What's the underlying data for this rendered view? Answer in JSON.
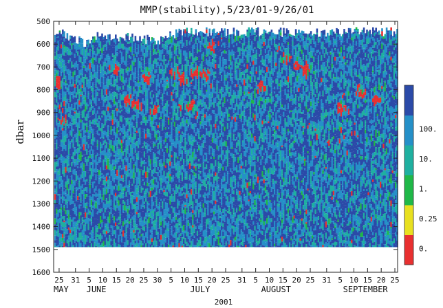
{
  "chart_data": {
    "type": "heatmap",
    "title": "MMP(stability),5/23/01-9/26/01",
    "ylabel": "dbar",
    "xlabel": "2001",
    "y_reversed": true,
    "ylim": [
      500,
      1600
    ],
    "yticks": [
      500,
      600,
      700,
      800,
      900,
      1000,
      1100,
      1200,
      1300,
      1400,
      1500,
      1600
    ],
    "xlim": [
      "2001-05-23",
      "2001-09-26"
    ],
    "day_ticks": [
      {
        "date": "2001-05-25",
        "label": "25"
      },
      {
        "date": "2001-05-31",
        "label": "31"
      },
      {
        "date": "2001-06-05",
        "label": "5"
      },
      {
        "date": "2001-06-10",
        "label": "10"
      },
      {
        "date": "2001-06-15",
        "label": "15"
      },
      {
        "date": "2001-06-20",
        "label": "20"
      },
      {
        "date": "2001-06-25",
        "label": "25"
      },
      {
        "date": "2001-06-30",
        "label": "30"
      },
      {
        "date": "2001-07-05",
        "label": "5"
      },
      {
        "date": "2001-07-10",
        "label": "10"
      },
      {
        "date": "2001-07-15",
        "label": "15"
      },
      {
        "date": "2001-07-20",
        "label": "20"
      },
      {
        "date": "2001-07-25",
        "label": "25"
      },
      {
        "date": "2001-07-31",
        "label": "31"
      },
      {
        "date": "2001-08-05",
        "label": "5"
      },
      {
        "date": "2001-08-10",
        "label": "10"
      },
      {
        "date": "2001-08-15",
        "label": "15"
      },
      {
        "date": "2001-08-20",
        "label": "20"
      },
      {
        "date": "2001-08-25",
        "label": "25"
      },
      {
        "date": "2001-08-31",
        "label": "31"
      },
      {
        "date": "2001-09-05",
        "label": "5"
      },
      {
        "date": "2001-09-10",
        "label": "10"
      },
      {
        "date": "2001-09-15",
        "label": "15"
      },
      {
        "date": "2001-09-20",
        "label": "20"
      },
      {
        "date": "2001-09-25",
        "label": "25"
      }
    ],
    "months": [
      {
        "label": "MAY",
        "date": "2001-05-23"
      },
      {
        "label": "JUNE",
        "date": "2001-06-04"
      },
      {
        "label": "JULY",
        "date": "2001-07-12"
      },
      {
        "label": "AUGUST",
        "date": "2001-08-07"
      },
      {
        "label": "SEPTEMBER",
        "date": "2001-09-06"
      }
    ],
    "colorbar": {
      "bands": [
        {
          "color": "#e83030"
        },
        {
          "color": "#e8e020"
        },
        {
          "color": "#20b848"
        },
        {
          "color": "#1fb0a0"
        },
        {
          "color": "#2590c8"
        },
        {
          "color": "#2b4aa8"
        }
      ],
      "labels": [
        "0.",
        "0.25",
        "1.",
        "10.",
        "100."
      ]
    },
    "profile_top": [
      {
        "date": "2001-05-23",
        "depth": 540
      },
      {
        "date": "2001-06-03",
        "depth": 595
      },
      {
        "date": "2001-06-08",
        "depth": 565
      },
      {
        "date": "2001-06-20",
        "depth": 570
      },
      {
        "date": "2001-06-30",
        "depth": 585
      },
      {
        "date": "2001-07-05",
        "depth": 560
      },
      {
        "date": "2001-07-10",
        "depth": 545
      },
      {
        "date": "2001-08-10",
        "depth": 545
      },
      {
        "date": "2001-08-20",
        "depth": 555
      },
      {
        "date": "2001-09-10",
        "depth": 545
      },
      {
        "date": "2001-09-26",
        "depth": 545
      }
    ],
    "profile_bottom_depth": 1490,
    "high_stability_patches": [
      {
        "date": "2001-05-24",
        "depth": 760
      },
      {
        "date": "2001-05-26",
        "depth": 930
      },
      {
        "date": "2001-06-14",
        "depth": 700
      },
      {
        "date": "2001-06-19",
        "depth": 840
      },
      {
        "date": "2001-06-22",
        "depth": 860
      },
      {
        "date": "2001-06-26",
        "depth": 740
      },
      {
        "date": "2001-06-29",
        "depth": 880
      },
      {
        "date": "2001-07-06",
        "depth": 710
      },
      {
        "date": "2001-07-09",
        "depth": 740
      },
      {
        "date": "2001-07-12",
        "depth": 860
      },
      {
        "date": "2001-07-14",
        "depth": 720
      },
      {
        "date": "2001-07-17",
        "depth": 730
      },
      {
        "date": "2001-07-19",
        "depth": 600
      },
      {
        "date": "2001-08-07",
        "depth": 780
      },
      {
        "date": "2001-08-16",
        "depth": 650
      },
      {
        "date": "2001-08-20",
        "depth": 680
      },
      {
        "date": "2001-08-23",
        "depth": 700
      },
      {
        "date": "2001-09-05",
        "depth": 870
      },
      {
        "date": "2001-09-12",
        "depth": 800
      },
      {
        "date": "2001-09-18",
        "depth": 830
      }
    ]
  }
}
